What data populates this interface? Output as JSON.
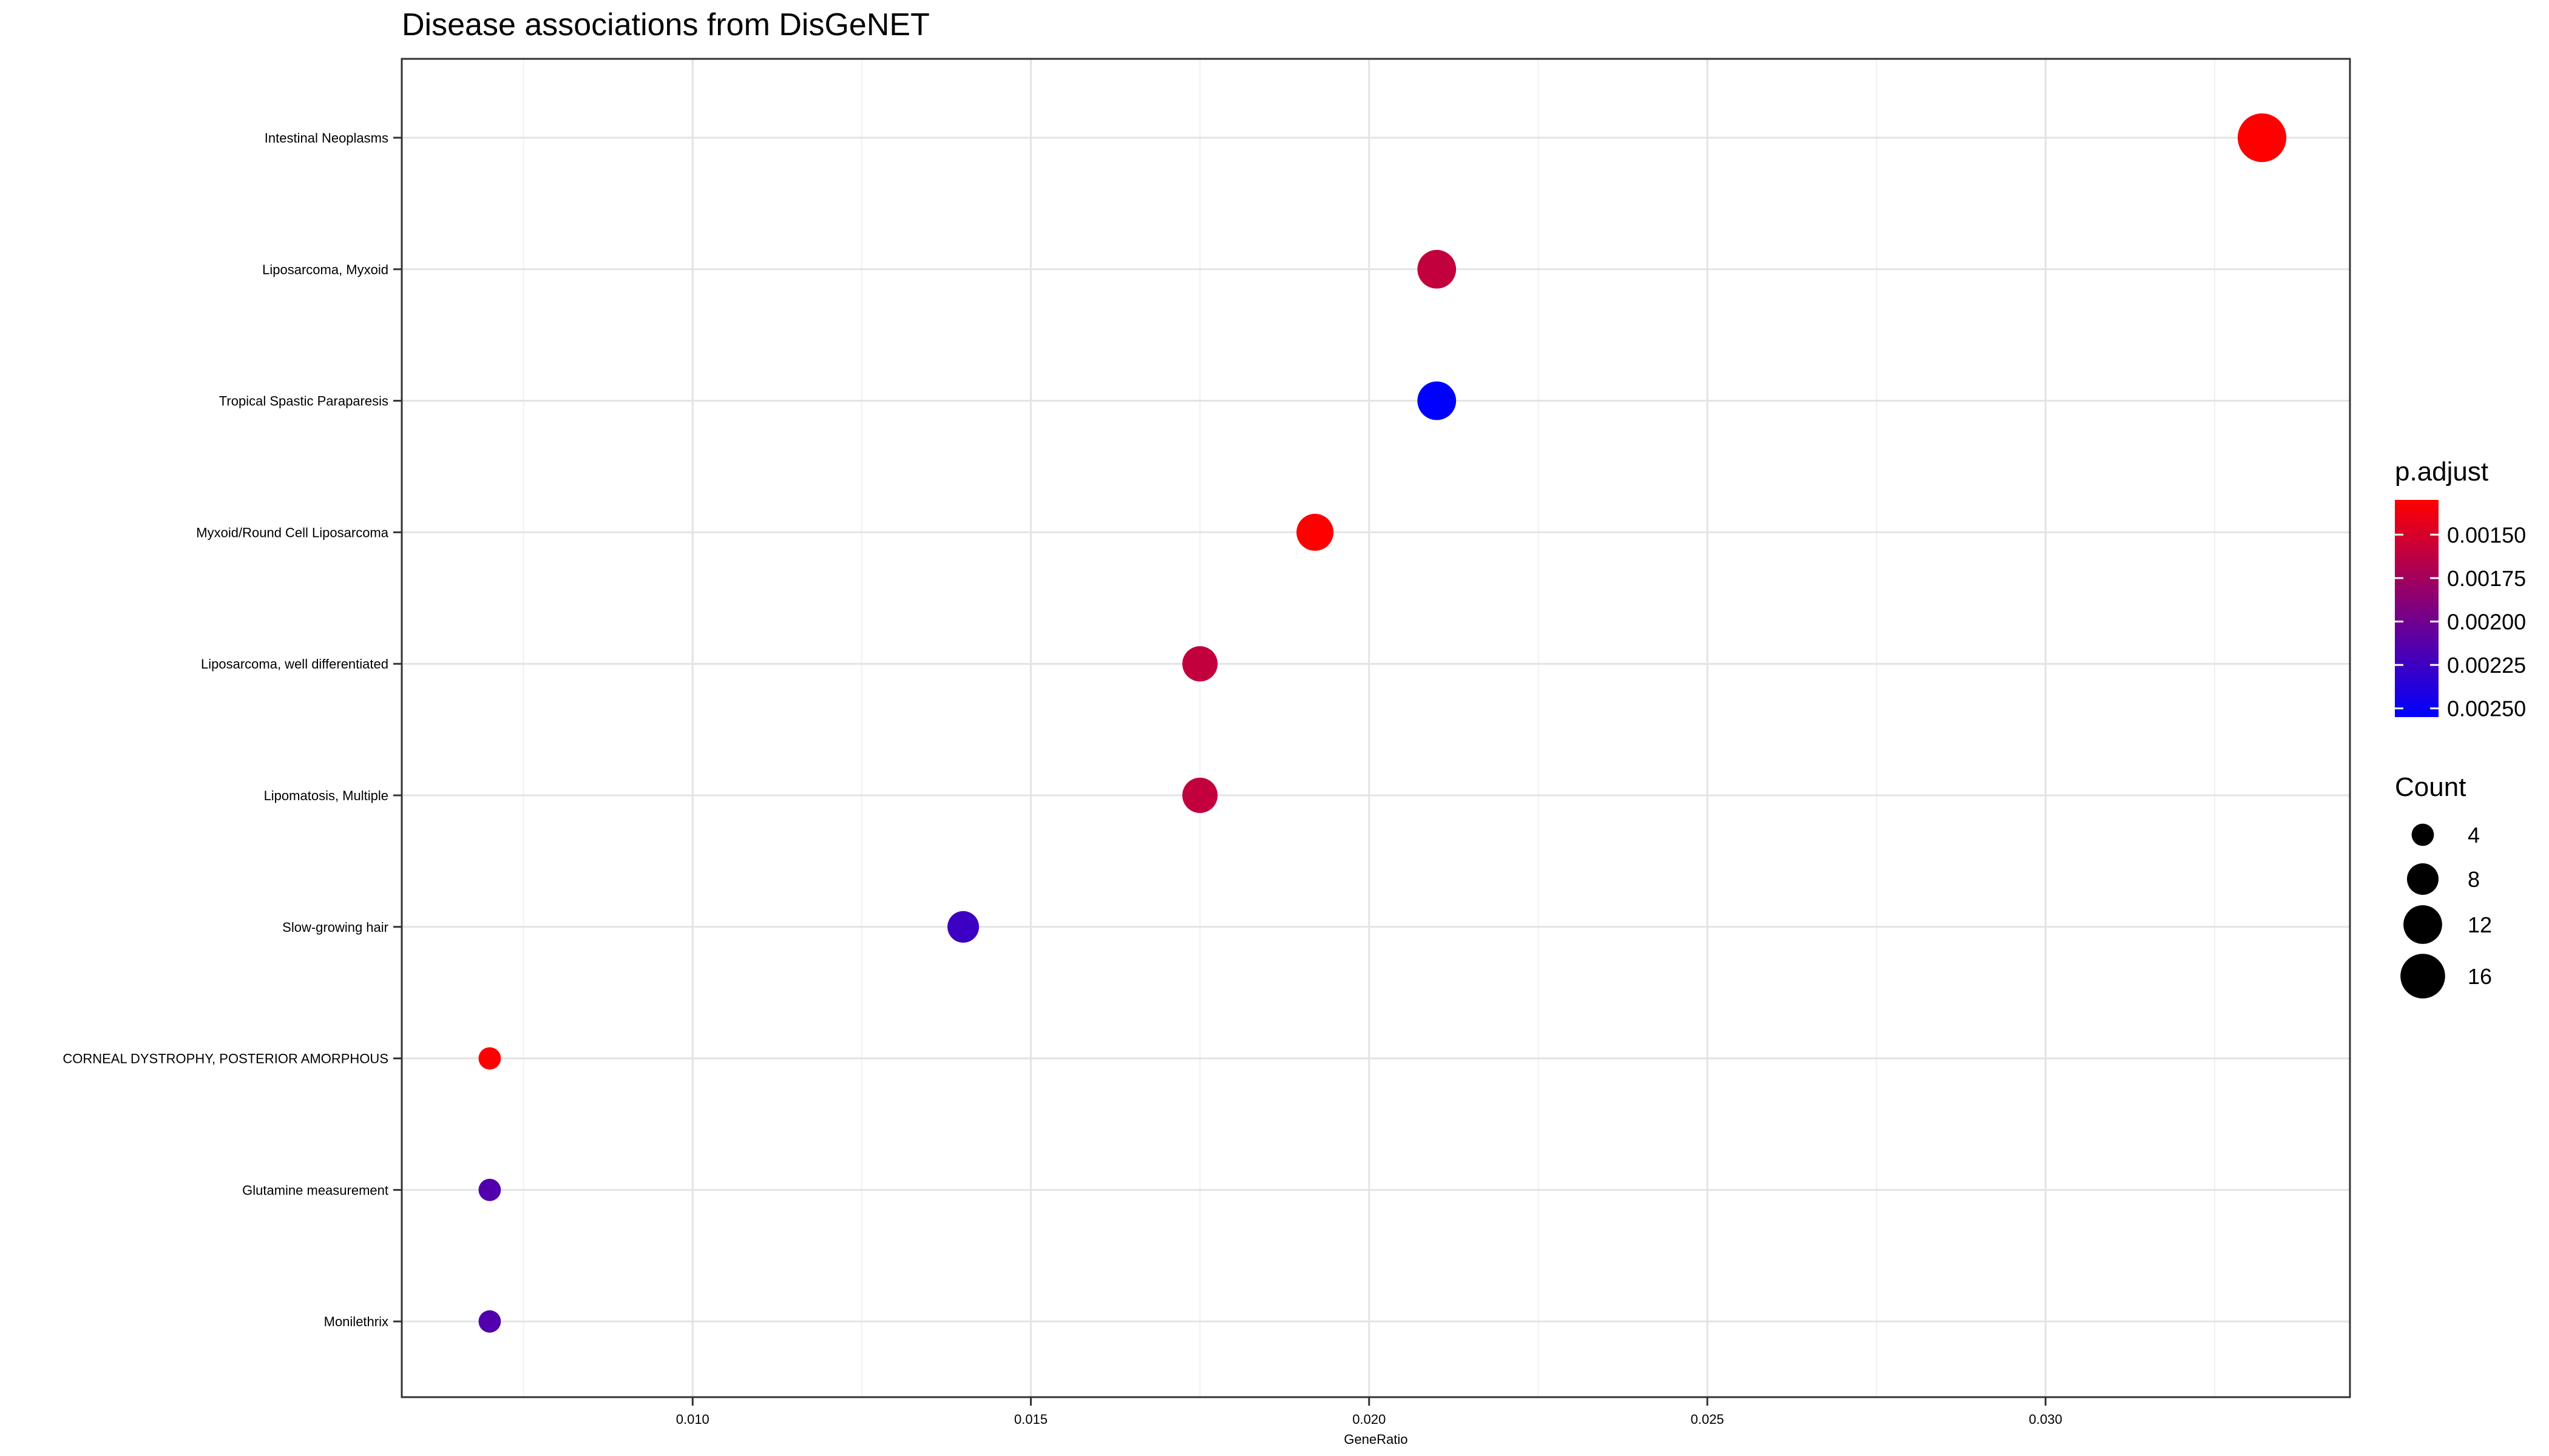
{
  "chart_data": {
    "type": "scatter",
    "title": "Disease associations from DisGeNET",
    "xlabel": "GeneRatio",
    "ylabel": "",
    "xlim": [
      0.0057,
      0.0345
    ],
    "x_ticks": [
      0.01,
      0.015,
      0.02,
      0.025,
      0.03
    ],
    "x_tick_labels": [
      "0.010",
      "0.015",
      "0.020",
      "0.025",
      "0.030"
    ],
    "grid": true,
    "legend_position": "right",
    "color_scale": {
      "title": "p.adjust",
      "low_color": "#ff0000",
      "high_color": "#0000ff",
      "min": 0.0013,
      "max": 0.00255,
      "ticks": [
        0.0015,
        0.00175,
        0.002,
        0.00225,
        0.0025
      ],
      "tick_labels": [
        "0.00150",
        "0.00175",
        "0.00200",
        "0.00225",
        "0.00250"
      ]
    },
    "size_scale": {
      "title": "Count",
      "values": [
        4,
        8,
        12,
        16
      ],
      "labels": [
        "4",
        "8",
        "12",
        "16"
      ]
    },
    "categories": [
      "Intestinal Neoplasms",
      "Liposarcoma, Myxoid",
      "Tropical Spastic Paraparesis",
      "Myxoid/Round Cell Liposarcoma",
      "Liposarcoma, well differentiated",
      "Lipomatosis, Multiple",
      "Slow-growing hair",
      "CORNEAL DYSTROPHY, POSTERIOR AMORPHOUS",
      "Glutamine measurement",
      "Monilethrix"
    ],
    "points": [
      {
        "label": "Intestinal Neoplasms",
        "x": 0.0332,
        "count": 19,
        "p_adjust": 0.0013
      },
      {
        "label": "Liposarcoma, Myxoid",
        "x": 0.021,
        "count": 12,
        "p_adjust": 0.0016
      },
      {
        "label": "Tropical Spastic Paraparesis",
        "x": 0.021,
        "count": 12,
        "p_adjust": 0.00255
      },
      {
        "label": "Myxoid/Round Cell Liposarcoma",
        "x": 0.0192,
        "count": 11,
        "p_adjust": 0.0013
      },
      {
        "label": "Liposarcoma, well differentiated",
        "x": 0.0175,
        "count": 10,
        "p_adjust": 0.0016
      },
      {
        "label": "Lipomatosis, Multiple",
        "x": 0.0175,
        "count": 10,
        "p_adjust": 0.0016
      },
      {
        "label": "Slow-growing hair",
        "x": 0.014,
        "count": 8,
        "p_adjust": 0.00225
      },
      {
        "label": "CORNEAL DYSTROPHY, POSTERIOR AMORPHOUS",
        "x": 0.007,
        "count": 4,
        "p_adjust": 0.0013
      },
      {
        "label": "Glutamine measurement",
        "x": 0.007,
        "count": 4,
        "p_adjust": 0.00215
      },
      {
        "label": "Monilethrix",
        "x": 0.007,
        "count": 4,
        "p_adjust": 0.00215
      }
    ]
  }
}
